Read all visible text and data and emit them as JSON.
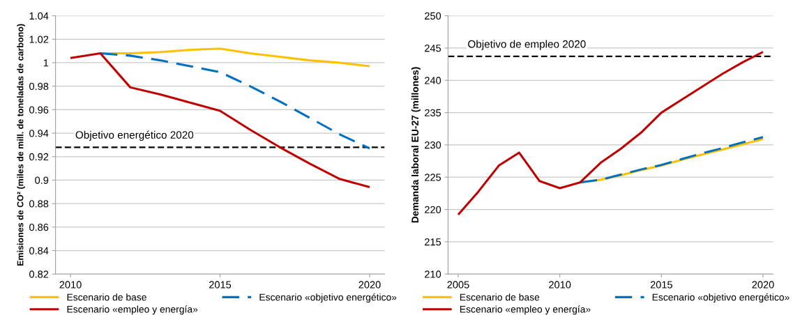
{
  "chart_data": [
    {
      "type": "line",
      "ylabel": "Emisiones de CO² (miles de mill. de toneladas de carbono)",
      "x": [
        2010,
        2011,
        2012,
        2013,
        2014,
        2015,
        2016,
        2017,
        2018,
        2019,
        2020
      ],
      "xlim": [
        2009.5,
        2020.5
      ],
      "xticks": [
        2010,
        2015,
        2020
      ],
      "ylim": [
        0.82,
        1.04
      ],
      "yticks": [
        0.82,
        0.84,
        0.86,
        0.88,
        0.9,
        0.92,
        0.94,
        0.96,
        0.98,
        1,
        1.02,
        1.04
      ],
      "grid": "y",
      "legend": "bottom",
      "marker": "none",
      "series": [
        {
          "name": "Escenario de base",
          "color": "#ffc000",
          "line_style": "solid",
          "values": [
            null,
            1.008,
            1.008,
            1.009,
            1.011,
            1.012,
            1.008,
            1.005,
            1.002,
            1.0,
            0.997
          ]
        },
        {
          "name": "Escenario «objetivo energético»",
          "color": "#0070c0",
          "line_style": "dashed",
          "values": [
            null,
            1.008,
            1.006,
            1.002,
            0.997,
            0.992,
            0.98,
            0.967,
            0.953,
            0.939,
            0.927
          ]
        },
        {
          "name": "Escenario «empleo y energía»",
          "color": "#c00000",
          "line_style": "solid",
          "values": [
            1.004,
            1.008,
            0.979,
            0.973,
            0.966,
            0.959,
            0.943,
            0.928,
            0.914,
            0.901,
            0.894
          ]
        }
      ],
      "ref_lines": [
        {
          "axis": "y",
          "value": 0.928,
          "label": "Objetivo energético 2020",
          "color": "#000000",
          "line_style": "dashed"
        }
      ]
    },
    {
      "type": "line",
      "ylabel": "Demanda laboral EU-27 (millones)",
      "x": [
        2005,
        2006,
        2007,
        2008,
        2009,
        2010,
        2011,
        2012,
        2013,
        2014,
        2015,
        2016,
        2017,
        2018,
        2019,
        2020
      ],
      "xlim": [
        2004.5,
        2020.5
      ],
      "xticks": [
        2005,
        2010,
        2015,
        2020
      ],
      "ylim": [
        210,
        250
      ],
      "yticks": [
        210,
        215,
        220,
        225,
        230,
        235,
        240,
        245,
        250
      ],
      "grid": "y",
      "legend": "bottom",
      "marker": "none",
      "series": [
        {
          "name": "Escenario de base",
          "color": "#ffc000",
          "line_style": "solid",
          "values": [
            null,
            null,
            null,
            null,
            null,
            null,
            224.2,
            224.6,
            225.3,
            226.1,
            226.8,
            227.7,
            228.5,
            229.3,
            230.1,
            230.9
          ]
        },
        {
          "name": "Escenario «objetivo energético»",
          "color": "#0070c0",
          "line_style": "dashed",
          "values": [
            null,
            null,
            null,
            null,
            null,
            null,
            224.2,
            224.6,
            225.4,
            226.2,
            226.9,
            227.8,
            228.7,
            229.5,
            230.4,
            231.2
          ]
        },
        {
          "name": "Escenario «empleo y energía»",
          "color": "#c00000",
          "line_style": "solid",
          "values": [
            219.2,
            222.8,
            226.8,
            228.8,
            224.4,
            223.3,
            224.2,
            227.2,
            229.4,
            231.9,
            235.0,
            237.0,
            239.0,
            241.0,
            242.8,
            244.4
          ]
        }
      ],
      "ref_lines": [
        {
          "axis": "y",
          "value": 243.7,
          "label": "Objetivo de empleo 2020",
          "color": "#000000",
          "line_style": "dashed"
        }
      ]
    }
  ]
}
